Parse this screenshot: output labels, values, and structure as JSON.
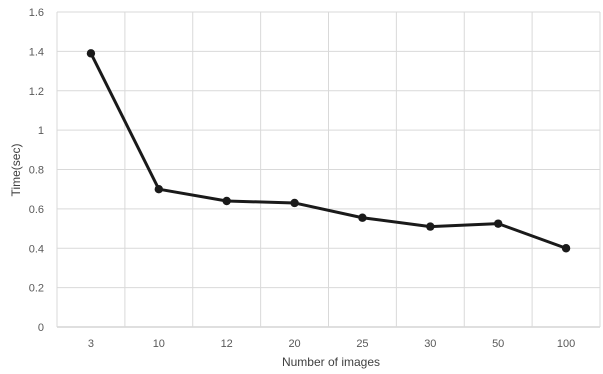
{
  "chart_data": {
    "type": "line",
    "categories": [
      "3",
      "10",
      "12",
      "20",
      "25",
      "30",
      "50",
      "100"
    ],
    "series": [
      {
        "values": [
          1.39,
          0.7,
          0.64,
          0.63,
          0.555,
          0.51,
          0.525,
          0.4
        ]
      }
    ],
    "xlabel": "Number of images",
    "ylabel": "Time(sec)",
    "ylim": [
      0,
      1.6
    ],
    "yticks": [
      "0",
      "0.2",
      "0.4",
      "0.6",
      "0.8",
      "1",
      "1.2",
      "1.4",
      "1.6"
    ],
    "grid": true,
    "line_color": "#1a1a1a"
  }
}
